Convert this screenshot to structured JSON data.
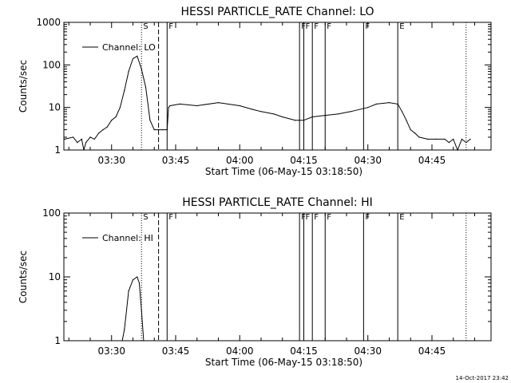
{
  "chart_data": [
    {
      "type": "line",
      "title": "HESSI PARTICLE_RATE Channel: LO",
      "xlabel": "Start Time (06-May-15 03:18:50)",
      "ylabel": "Counts/sec",
      "yscale": "log",
      "ylim": [
        1,
        1000
      ],
      "xlim": [
        "03:18:50",
        "04:58:50"
      ],
      "x_tick_labels": [
        "03:30",
        "03:45",
        "04:00",
        "04:15",
        "04:30",
        "04:45"
      ],
      "y_tick_labels": [
        "1",
        "10",
        "100",
        "1000"
      ],
      "legend": {
        "entries": [
          "Channel: LO"
        ],
        "placement": "upper-left"
      },
      "grid": false,
      "series": [
        {
          "name": "Channel: LO",
          "x": [
            "03:19",
            "03:21",
            "03:22",
            "03:23",
            "03:23:30",
            "03:24",
            "03:25",
            "03:26",
            "03:27",
            "03:28",
            "03:29",
            "03:30",
            "03:31",
            "03:32",
            "03:33",
            "03:34",
            "03:35",
            "03:36",
            "03:37",
            "03:38",
            "03:39",
            "03:40",
            "03:41",
            "03:42",
            "03:43",
            "03:43:20",
            "03:43:40",
            "03:46",
            "03:50",
            "03:55",
            "04:00",
            "04:03",
            "04:05",
            "04:08",
            "04:10",
            "04:13",
            "04:14",
            "04:15",
            "04:17",
            "04:20",
            "04:23",
            "04:26",
            "04:30",
            "04:32",
            "04:35",
            "04:37",
            "04:38",
            "04:39",
            "04:40",
            "04:41",
            "04:42",
            "04:44",
            "04:46",
            "04:48",
            "04:49",
            "04:50",
            "04:51",
            "04:52",
            "04:53",
            "04:54"
          ],
          "values": [
            1.8,
            2,
            1.5,
            1.8,
            1,
            1.5,
            2,
            1.8,
            2.5,
            3,
            3.5,
            5,
            6,
            10,
            25,
            70,
            140,
            160,
            80,
            30,
            5,
            3,
            3,
            3,
            3,
            10,
            11,
            12,
            11,
            13,
            11,
            9,
            8,
            7,
            6,
            5,
            5,
            5,
            6,
            6.5,
            7,
            8,
            10,
            12,
            13,
            12,
            8,
            5,
            3,
            2.5,
            2,
            1.8,
            1.8,
            1.8,
            1.5,
            1.8,
            1,
            1.8,
            1.5,
            1.8
          ]
        }
      ],
      "vertical_markers": [
        {
          "x": "03:37",
          "style": "dotted",
          "label": "S"
        },
        {
          "x": "03:41",
          "style": "dashed",
          "label": ""
        },
        {
          "x": "03:43",
          "style": "solid",
          "label": "F"
        },
        {
          "x": "04:14",
          "style": "solid",
          "label": "F"
        },
        {
          "x": "04:15",
          "style": "solid",
          "label": "F"
        },
        {
          "x": "04:17",
          "style": "solid",
          "label": "F"
        },
        {
          "x": "04:20",
          "style": "solid",
          "label": "F"
        },
        {
          "x": "04:29",
          "style": "solid",
          "label": "F"
        },
        {
          "x": "04:37",
          "style": "solid",
          "label": "E"
        },
        {
          "x": "04:53",
          "style": "dotted",
          "label": ""
        }
      ]
    },
    {
      "type": "line",
      "title": "HESSI PARTICLE_RATE Channel: HI",
      "xlabel": "Start Time (06-May-15 03:18:50)",
      "ylabel": "Counts/sec",
      "yscale": "log",
      "ylim": [
        1,
        100
      ],
      "xlim": [
        "03:18:50",
        "04:58:50"
      ],
      "x_tick_labels": [
        "03:30",
        "03:45",
        "04:00",
        "04:15",
        "04:30",
        "04:45"
      ],
      "y_tick_labels": [
        "1",
        "10",
        "100"
      ],
      "legend": {
        "entries": [
          "Channel: HI"
        ],
        "placement": "upper-left"
      },
      "grid": false,
      "series": [
        {
          "name": "Channel: HI",
          "x": [
            "03:32:30",
            "03:33",
            "03:33:30",
            "03:34",
            "03:35",
            "03:36",
            "03:36:30",
            "03:37",
            "03:37:30"
          ],
          "values": [
            1,
            1.5,
            3,
            6,
            9,
            10,
            8,
            3,
            1
          ]
        }
      ],
      "vertical_markers": [
        {
          "x": "03:37",
          "style": "dotted",
          "label": "S"
        },
        {
          "x": "03:41",
          "style": "dashed",
          "label": ""
        },
        {
          "x": "03:43",
          "style": "solid",
          "label": "F"
        },
        {
          "x": "04:14",
          "style": "solid",
          "label": "F"
        },
        {
          "x": "04:15",
          "style": "solid",
          "label": "F"
        },
        {
          "x": "04:17",
          "style": "solid",
          "label": "F"
        },
        {
          "x": "04:20",
          "style": "solid",
          "label": "F"
        },
        {
          "x": "04:29",
          "style": "solid",
          "label": "F"
        },
        {
          "x": "04:37",
          "style": "solid",
          "label": "E"
        },
        {
          "x": "04:53",
          "style": "dotted",
          "label": ""
        }
      ]
    }
  ],
  "footer": {
    "timestamp": "14-Oct-2017 23:42"
  }
}
